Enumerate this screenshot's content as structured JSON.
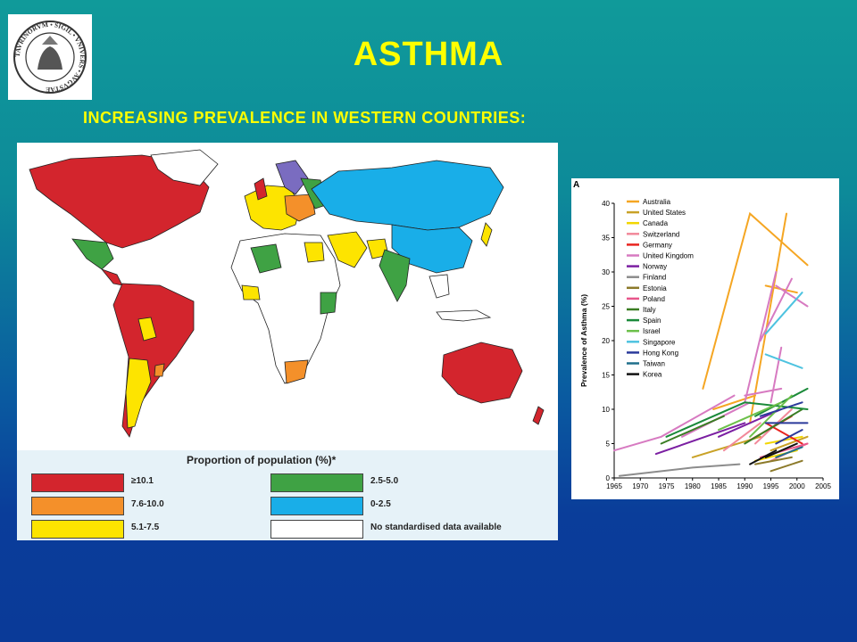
{
  "page": {
    "title": "ASTHMA",
    "subtitle": "INCREASING PREVALENCE IN WESTERN COUNTRIES:",
    "seal_text": "TAVRINORVM • SIGIL • VNIVERS • AVGVSTAE"
  },
  "map": {
    "legend_title": "Proportion of population (%)*",
    "legend": [
      {
        "label": "≥10.1",
        "color": "#d3252d"
      },
      {
        "label": "7.6-10.0",
        "color": "#f4902a"
      },
      {
        "label": "5.1-7.5",
        "color": "#fde400"
      },
      {
        "label": "2.5-5.0",
        "color": "#3fa244"
      },
      {
        "label": "0-2.5",
        "color": "#19aee8"
      },
      {
        "label": "No standardised data available",
        "color": "#ffffff"
      }
    ]
  },
  "chart_data": {
    "type": "line",
    "panel_label": "A",
    "ylabel": "Prevalence of Asthma (%)",
    "xlabel": "",
    "xlim": [
      1965,
      2005
    ],
    "ylim": [
      0,
      40
    ],
    "x_ticks": [
      1965,
      1970,
      1975,
      1980,
      1985,
      1990,
      1995,
      2000,
      2005
    ],
    "y_ticks": [
      0,
      5,
      10,
      15,
      20,
      25,
      30,
      35,
      40
    ],
    "series": [
      {
        "name": "Australia",
        "color": "#f5a623",
        "segments": [
          [
            [
              1982,
              13
            ],
            [
              1991,
              38.5
            ],
            [
              2002,
              31
            ]
          ],
          [
            [
              1984,
              10
            ],
            [
              1992,
              12
            ]
          ],
          [
            [
              1991,
              8
            ],
            [
              1998,
              38.5
            ]
          ],
          [
            [
              1994,
              28
            ],
            [
              2000,
              27
            ]
          ]
        ]
      },
      {
        "name": "United States",
        "color": "#c9a227",
        "segments": [
          [
            [
              1980,
              3
            ],
            [
              1993,
              6
            ]
          ],
          [
            [
              1995,
              4
            ],
            [
              2002,
              6
            ]
          ]
        ]
      },
      {
        "name": "Canada",
        "color": "#f2d600",
        "segments": [
          [
            [
              1992,
              2.5
            ],
            [
              2000,
              4
            ]
          ],
          [
            [
              1994,
              5
            ],
            [
              2001,
              6
            ]
          ]
        ]
      },
      {
        "name": "Switzerland",
        "color": "#f2899a",
        "segments": [
          [
            [
              1986,
              4
            ],
            [
              1993,
              8
            ]
          ],
          [
            [
              1992,
              5
            ],
            [
              1999,
              10
            ]
          ],
          [
            [
              1995,
              2.5
            ],
            [
              2002,
              5
            ]
          ]
        ]
      },
      {
        "name": "Germany",
        "color": "#e8241f",
        "segments": [
          [
            [
              1991,
              5.5
            ],
            [
              1999,
              9
            ]
          ],
          [
            [
              1994,
              8
            ],
            [
              2001,
              5
            ]
          ]
        ]
      },
      {
        "name": "United Kingdom",
        "color": "#d77ac1",
        "segments": [
          [
            [
              1965,
              4
            ],
            [
              1974,
              6
            ],
            [
              1988,
              12
            ]
          ],
          [
            [
              1978,
              6
            ],
            [
              1991,
              11
            ]
          ],
          [
            [
              1990,
              11
            ],
            [
              1996,
              30
            ]
          ],
          [
            [
              1993,
              20
            ],
            [
              1999,
              29
            ]
          ],
          [
            [
              1995,
              11
            ],
            [
              1997,
              19
            ]
          ],
          [
            [
              1996,
              28
            ],
            [
              2002,
              25
            ]
          ],
          [
            [
              1990,
              12
            ],
            [
              1997,
              13
            ]
          ]
        ]
      },
      {
        "name": "Norway",
        "color": "#7b1fa2",
        "segments": [
          [
            [
              1973,
              3.5
            ],
            [
              1990,
              8
            ]
          ],
          [
            [
              1985,
              6
            ],
            [
              1997,
              10
            ]
          ]
        ]
      },
      {
        "name": "Finland",
        "color": "#8c8c8c",
        "segments": [
          [
            [
              1966,
              0.3
            ],
            [
              1980,
              1.5
            ],
            [
              1989,
              2
            ]
          ]
        ]
      },
      {
        "name": "Estonia",
        "color": "#8c7a2a",
        "segments": [
          [
            [
              1992,
              2
            ],
            [
              1999,
              3
            ]
          ],
          [
            [
              1995,
              1
            ],
            [
              2001,
              2.5
            ]
          ]
        ]
      },
      {
        "name": "Poland",
        "color": "#e8558a",
        "segments": [
          [
            [
              1993,
              3
            ],
            [
              2002,
              5
            ]
          ]
        ]
      },
      {
        "name": "Italy",
        "color": "#3a7d23",
        "segments": [
          [
            [
              1974,
              5
            ],
            [
              1986,
              9
            ]
          ],
          [
            [
              1990,
              5
            ],
            [
              2001,
              10
            ]
          ]
        ]
      },
      {
        "name": "Spain",
        "color": "#1b8a3a",
        "segments": [
          [
            [
              1975,
              6
            ],
            [
              1990,
              11
            ],
            [
              2002,
              10
            ]
          ],
          [
            [
              1992,
              9
            ],
            [
              2002,
              13
            ]
          ]
        ]
      },
      {
        "name": "Israel",
        "color": "#6cc04a",
        "segments": [
          [
            [
              1985,
              7
            ],
            [
              1997,
              11
            ]
          ],
          [
            [
              1991,
              6
            ],
            [
              1999,
              12
            ]
          ]
        ]
      },
      {
        "name": "Singapore",
        "color": "#4ec3e0",
        "segments": [
          [
            [
              1994,
              21
            ],
            [
              2001,
              27
            ]
          ],
          [
            [
              1994,
              18
            ],
            [
              2001,
              16
            ]
          ]
        ]
      },
      {
        "name": "Hong Kong",
        "color": "#2b3a9b",
        "segments": [
          [
            [
              1993,
              9
            ],
            [
              2001,
              11
            ]
          ],
          [
            [
              1996,
              5
            ],
            [
              2001,
              7
            ]
          ],
          [
            [
              1994,
              8
            ],
            [
              2002,
              8
            ]
          ]
        ]
      },
      {
        "name": "Taiwan",
        "color": "#1f6f8b",
        "segments": [
          [
            [
              1996,
              3
            ],
            [
              2001,
              4.5
            ]
          ]
        ]
      },
      {
        "name": "Korea",
        "color": "#111111",
        "segments": [
          [
            [
              1991,
              2
            ],
            [
              1996,
              4
            ]
          ],
          [
            [
              1994,
              3
            ],
            [
              2000,
              5
            ]
          ]
        ]
      }
    ]
  }
}
